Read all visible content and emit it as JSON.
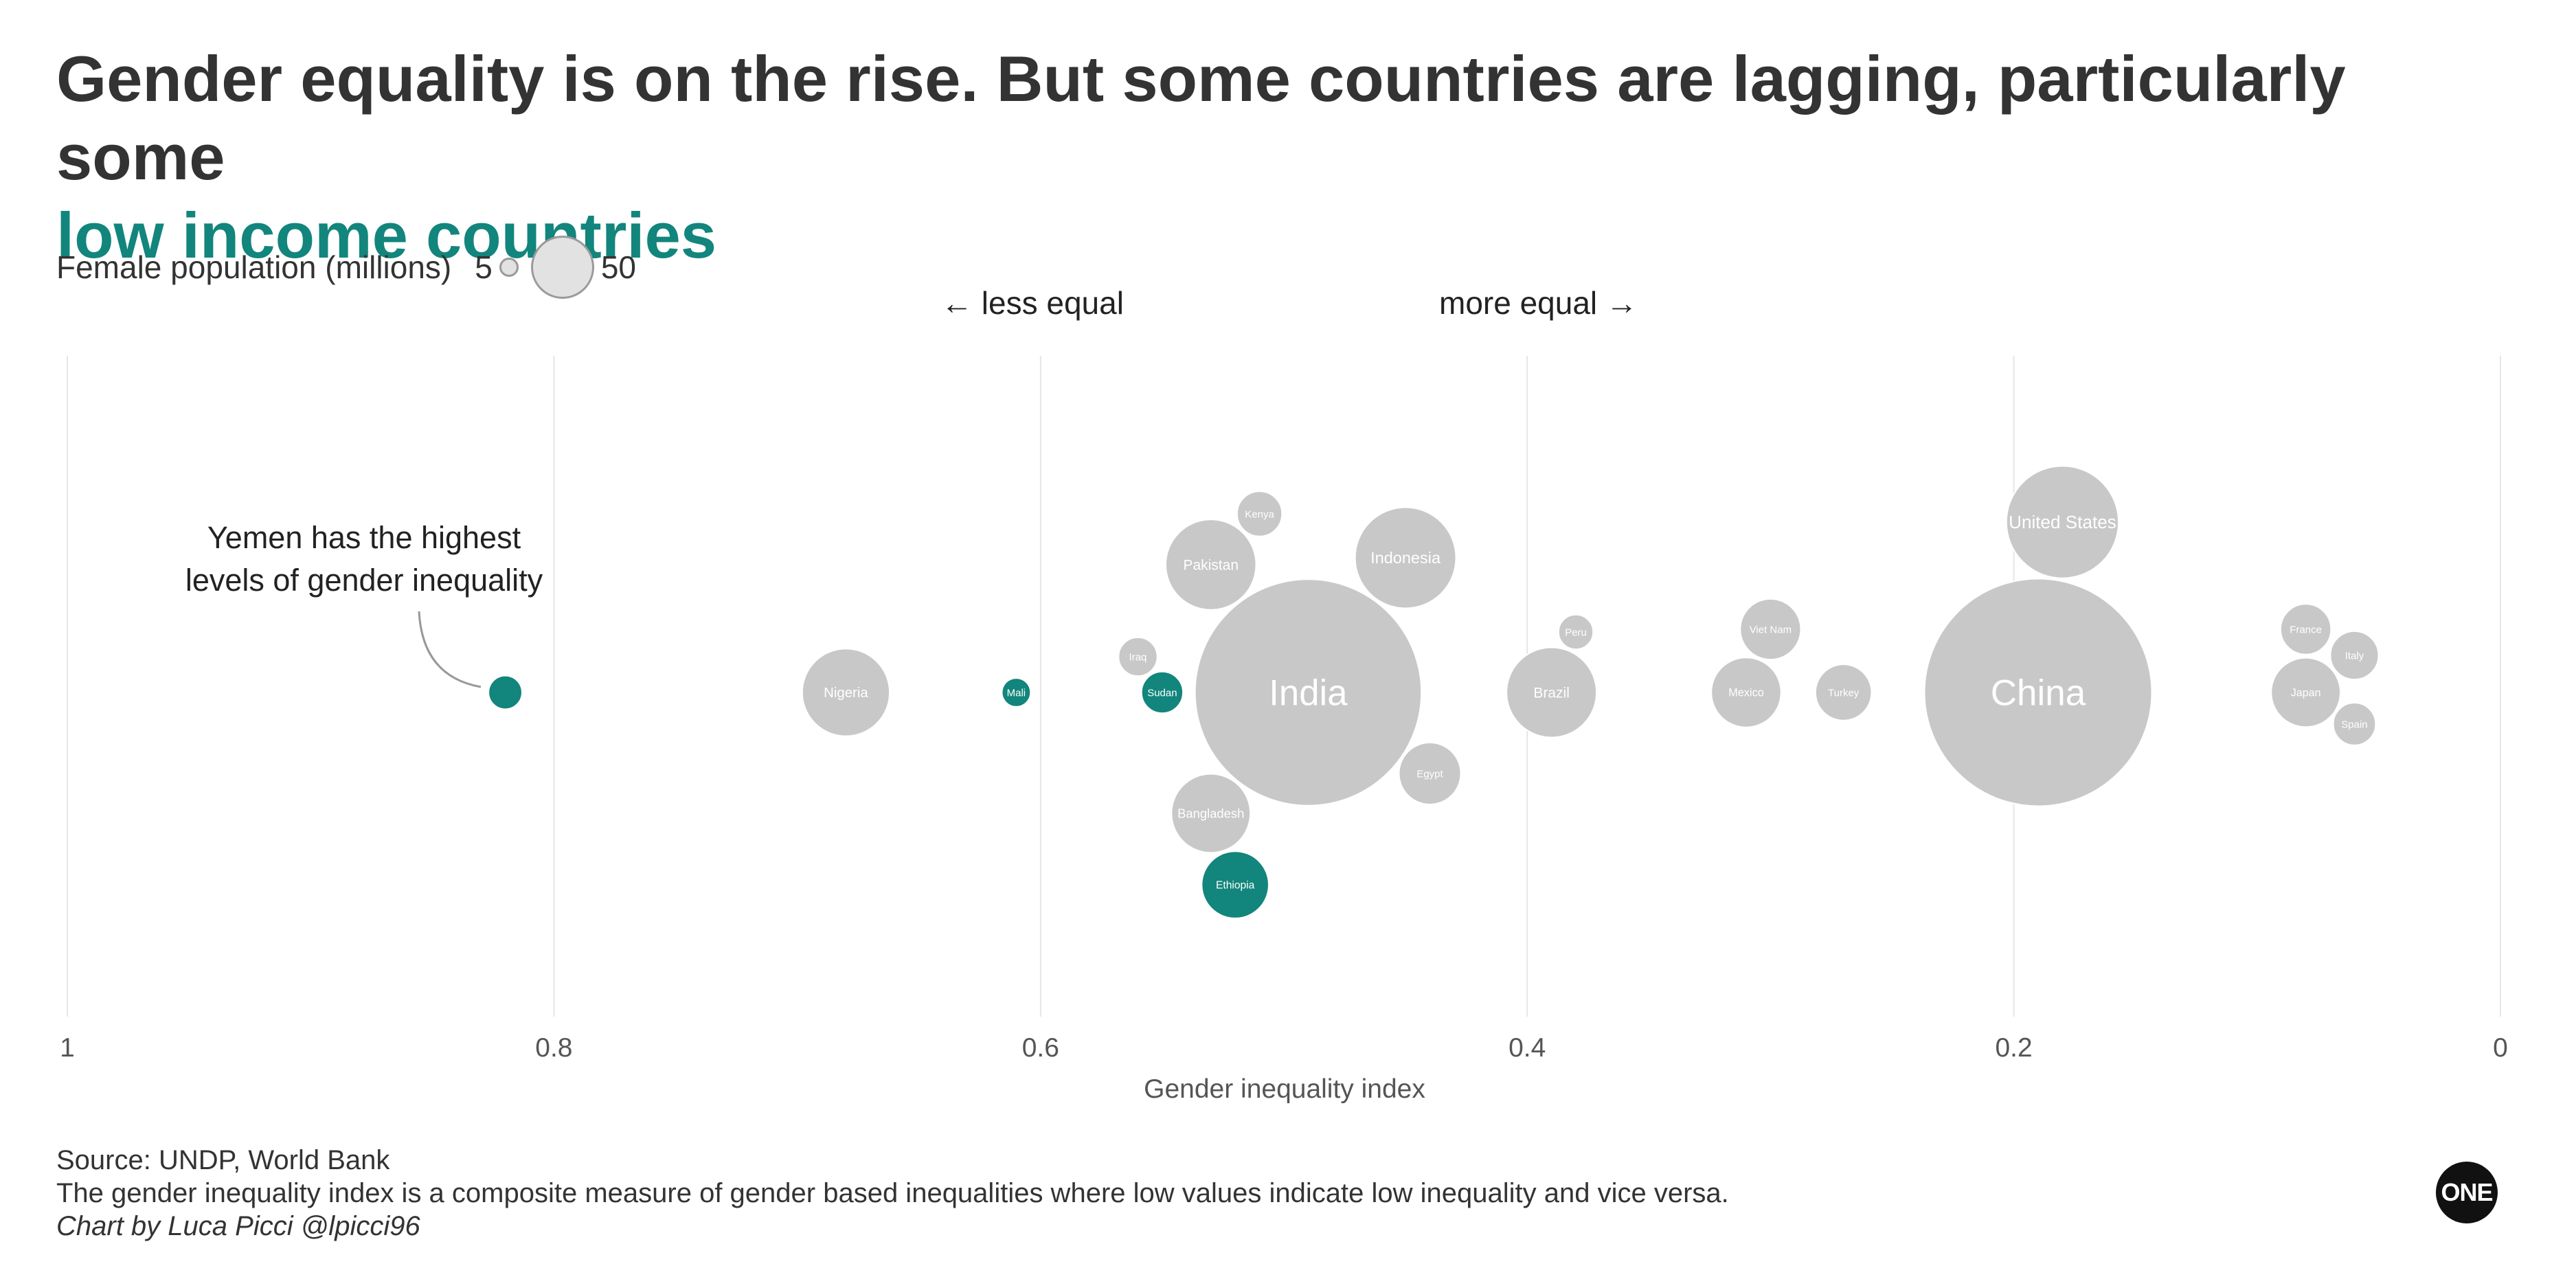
{
  "title": {
    "main": "Gender equality is on the rise. But some countries are lagging, particularly some",
    "highlight": "low income countries"
  },
  "legend": {
    "label": "Female population (millions)",
    "small_value": "5",
    "large_value": "50"
  },
  "direction": {
    "left": "← less equal",
    "right": "more equal →"
  },
  "footer": {
    "source": "Source: UNDP, World Bank",
    "note": "The gender inequality index is a composite measure of gender based inequalities where low values indicate low inequality and vice versa.",
    "credit": "Chart by Luca Picci @lpicci96"
  },
  "logo": "ONE",
  "colors": {
    "low_income": "#12857c",
    "other": "#c8c8c8",
    "gridline": "#e6e6e6",
    "text": "#333333"
  },
  "chart_data": {
    "type": "scatter",
    "subtype": "beeswarm",
    "xlabel": "Gender inequality index",
    "xlim": [
      1,
      0
    ],
    "x_ticks": [
      "1",
      "0.8",
      "0.6",
      "0.4",
      "0.2",
      "0"
    ],
    "annotation": "Yemen has the highest levels of gender inequality",
    "size_legend": {
      "label": "Female population (millions)",
      "values": [
        5,
        50
      ]
    },
    "series": [
      {
        "name": "Low income",
        "color": "#12857c"
      },
      {
        "name": "Other",
        "color": "#c8c8c8"
      }
    ],
    "points": [
      {
        "label": "India",
        "x": 0.49,
        "size": 684,
        "group": "Other"
      },
      {
        "label": "China",
        "x": 0.19,
        "size": 690,
        "group": "Other"
      },
      {
        "label": "United States",
        "x": 0.18,
        "size": 168,
        "group": "Other"
      },
      {
        "label": "Indonesia",
        "x": 0.45,
        "size": 136,
        "group": "Other"
      },
      {
        "label": "Pakistan",
        "x": 0.53,
        "size": 109,
        "group": "Other"
      },
      {
        "label": "Nigeria",
        "x": 0.68,
        "size": 102,
        "group": "Other"
      },
      {
        "label": "Brazil",
        "x": 0.39,
        "size": 108,
        "group": "Other"
      },
      {
        "label": "Bangladesh",
        "x": 0.53,
        "size": 83,
        "group": "Other"
      },
      {
        "label": "Ethiopia",
        "x": 0.52,
        "size": 60,
        "group": "Low income"
      },
      {
        "label": "Mexico",
        "x": 0.31,
        "size": 65,
        "group": "Other"
      },
      {
        "label": "Japan",
        "x": 0.08,
        "size": 64,
        "group": "Other"
      },
      {
        "label": "Egypt",
        "x": 0.44,
        "size": 51,
        "group": "Other"
      },
      {
        "label": "Viet Nam",
        "x": 0.3,
        "size": 49,
        "group": "Other"
      },
      {
        "label": "Turkey",
        "x": 0.27,
        "size": 42,
        "group": "Other"
      },
      {
        "label": "Italy",
        "x": 0.06,
        "size": 31,
        "group": "Other"
      },
      {
        "label": "France",
        "x": 0.08,
        "size": 34,
        "group": "Other"
      },
      {
        "label": "Kenya",
        "x": 0.51,
        "size": 27,
        "group": "Other"
      },
      {
        "label": "Sudan",
        "x": 0.55,
        "size": 23,
        "group": "Low income"
      },
      {
        "label": "Iraq",
        "x": 0.56,
        "size": 20,
        "group": "Other"
      },
      {
        "label": "Spain",
        "x": 0.06,
        "size": 24,
        "group": "Other"
      },
      {
        "label": "Peru",
        "x": 0.38,
        "size": 16,
        "group": "Other"
      },
      {
        "label": "Mali",
        "x": 0.61,
        "size": 11,
        "group": "Low income"
      },
      {
        "label": "Yemen",
        "x": 0.82,
        "size": 15,
        "group": "Low income"
      }
    ]
  }
}
